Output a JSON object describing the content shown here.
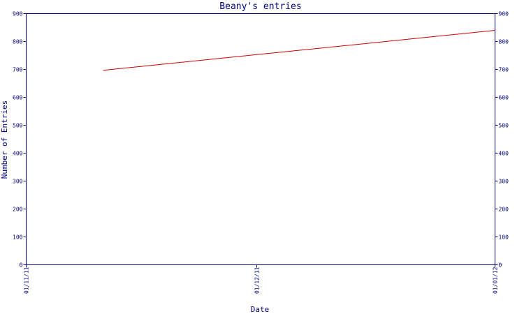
{
  "chart_data": {
    "type": "line",
    "title": "Beany's entries",
    "xlabel": "Date",
    "ylabel": "Number of Entries",
    "x_ticks": [
      "01/11/11",
      "01/12/11",
      "01/01/12"
    ],
    "x": [
      "11/2011-ish",
      "01/01/12"
    ],
    "series": [
      {
        "x": [
          "2011-11-11",
          "2012-01-01"
        ],
        "values": [
          697,
          840
        ]
      }
    ],
    "ylim": [
      0,
      900
    ],
    "y_ticks": [
      0,
      100,
      200,
      300,
      400,
      500,
      600,
      700,
      800,
      900
    ],
    "y_tick_labels_right": true,
    "grid": false,
    "colors": {
      "axis": "#000080",
      "series": "#cc0000",
      "text": "#000080"
    }
  }
}
